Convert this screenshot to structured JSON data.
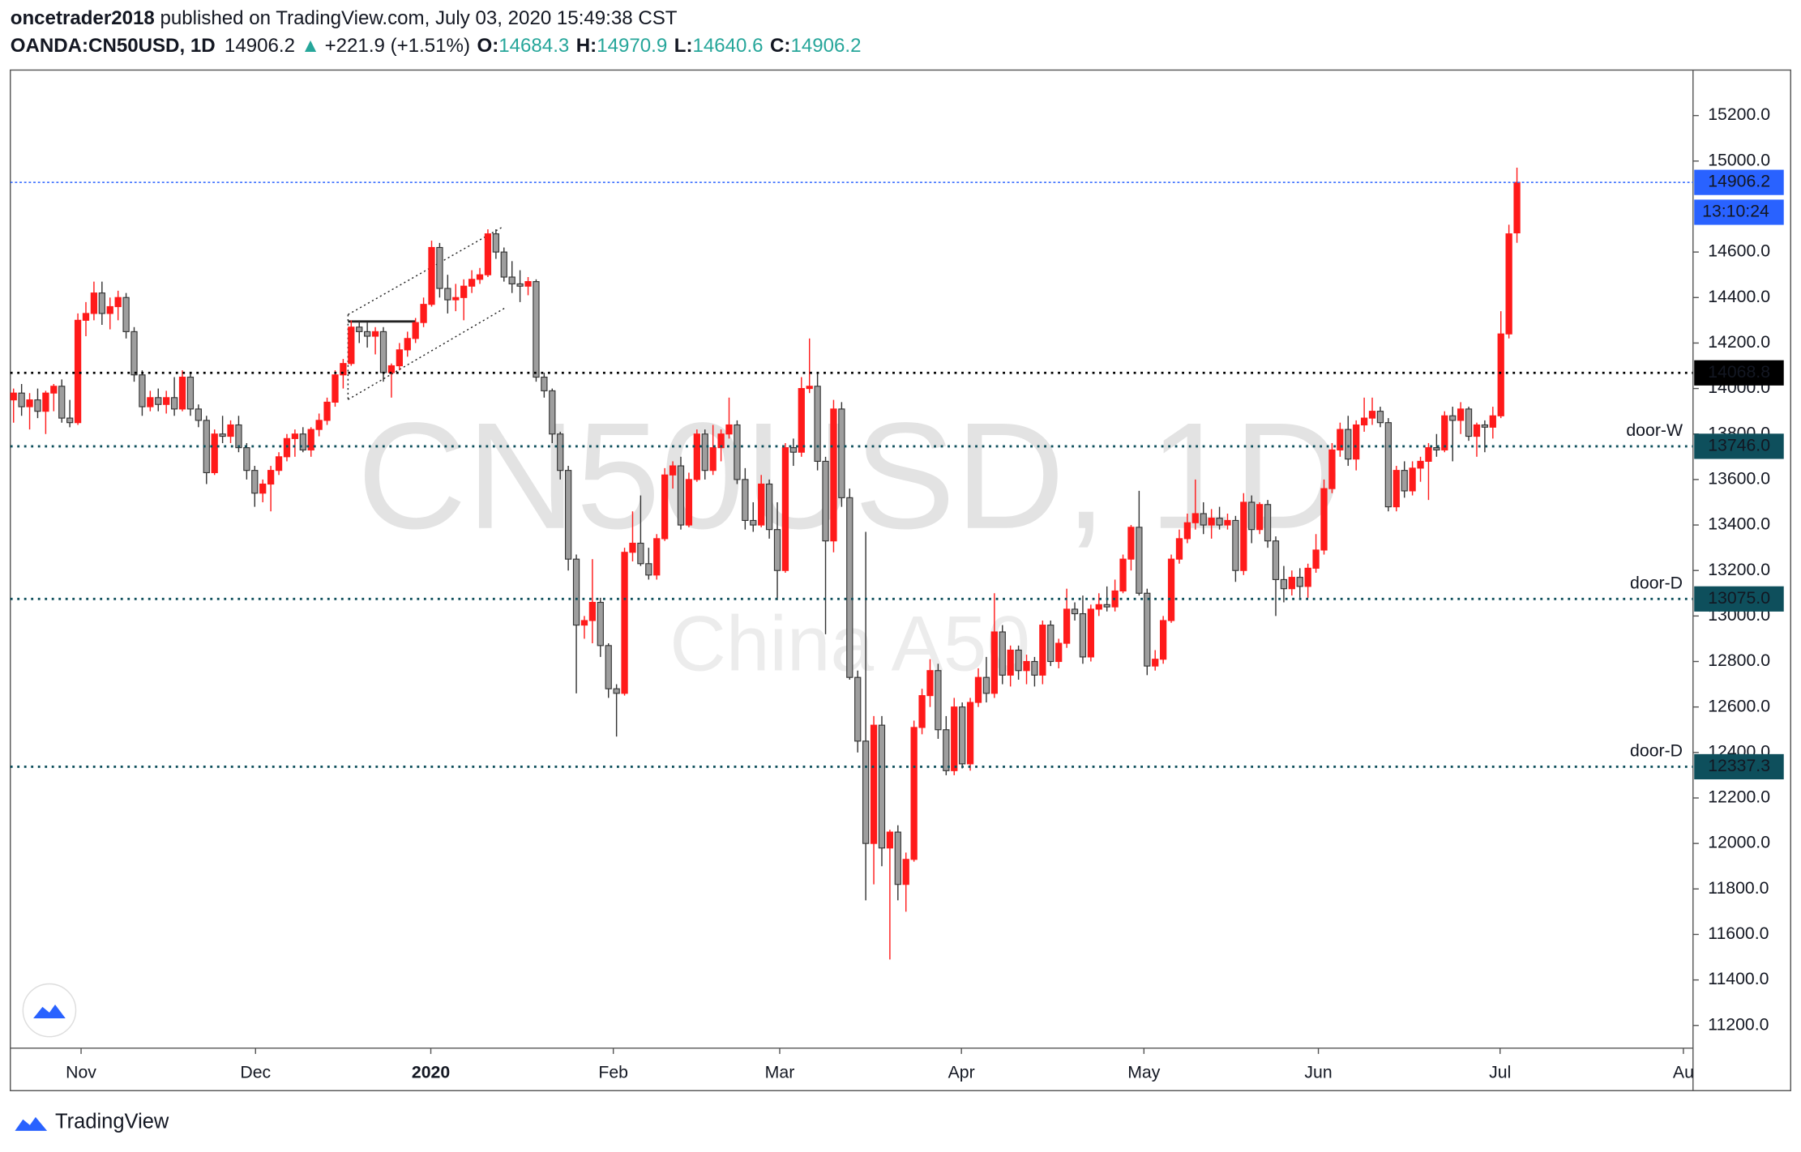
{
  "header": {
    "author": "oncetrader2018",
    "published": " published on TradingView.com, July 03, 2020 15:49:38 CST",
    "symbol": "OANDA:CN50USD, 1D",
    "price": "14906.2",
    "arrow": "▲",
    "change": "+221.9 (+1.51%)",
    "ohlc": [
      {
        "key": "O:",
        "value": "14684.3"
      },
      {
        "key": "H:",
        "value": "14970.9"
      },
      {
        "key": "L:",
        "value": "14640.6"
      },
      {
        "key": "C:",
        "value": "14906.2"
      }
    ]
  },
  "chart_data": {
    "type": "candlestick",
    "watermark": "CN50USD, 1D",
    "watermark_sub": "China A50",
    "up_color": "#ff1a1a",
    "down_color": "#9e9e9e",
    "ylim": [
      11100,
      15400
    ],
    "yticks": [
      {
        "value": 11200,
        "label": "11200.0"
      },
      {
        "value": 11400,
        "label": "11400.0"
      },
      {
        "value": 11600,
        "label": "11600.0"
      },
      {
        "value": 11800,
        "label": "11800.0"
      },
      {
        "value": 12000,
        "label": "12000.0"
      },
      {
        "value": 12200,
        "label": "12200.0"
      },
      {
        "value": 12400,
        "label": "12400.0"
      },
      {
        "value": 12600,
        "label": "12600.0"
      },
      {
        "value": 12800,
        "label": "12800.0"
      },
      {
        "value": 13000,
        "label": "13000.0"
      },
      {
        "value": 13200,
        "label": "13200.0"
      },
      {
        "value": 13400,
        "label": "13400.0"
      },
      {
        "value": 13600,
        "label": "13600.0"
      },
      {
        "value": 13800,
        "label": "13800.0"
      },
      {
        "value": 14000,
        "label": "14000.0"
      },
      {
        "value": 14200,
        "label": "14200.0"
      },
      {
        "value": 14400,
        "label": "14400.0"
      },
      {
        "value": 14600,
        "label": "14600.0"
      },
      {
        "value": 15000,
        "label": "15000.0"
      },
      {
        "value": 15200,
        "label": "15200.0"
      }
    ],
    "xlim": [
      -0.4,
      208.9
    ],
    "xticks": [
      {
        "value": 8.4,
        "label": "Nov"
      },
      {
        "value": 30.1,
        "label": "Dec"
      },
      {
        "value": 51.9,
        "label": "2020"
      },
      {
        "value": 74.6,
        "label": "Feb"
      },
      {
        "value": 95.3,
        "label": "Mar"
      },
      {
        "value": 117.9,
        "label": "Apr"
      },
      {
        "value": 140.6,
        "label": "May"
      },
      {
        "value": 162.3,
        "label": "Jun"
      },
      {
        "value": 184.9,
        "label": "Jul"
      },
      {
        "value": 207.7,
        "label": "Au"
      }
    ],
    "levels": [
      {
        "value": 14906.2,
        "label": "14906.2",
        "color": "#2962ff"
      },
      {
        "value": 14068.8,
        "label": "14068.8",
        "color": "#000000"
      },
      {
        "value": 13746.0,
        "label": "13746.0",
        "name": "door-W",
        "color": "#0e4f5c"
      },
      {
        "value": 13075.0,
        "label": "13075.0",
        "name": "door-D",
        "color": "#0e4f5c"
      },
      {
        "value": 12337.3,
        "label": "12337.3",
        "name": "door-D",
        "color": "#0e4f5c"
      }
    ],
    "countdown": "13:10:24",
    "candles": [
      [
        13950,
        14000,
        13850,
        13980
      ],
      [
        13980,
        14020,
        13880,
        13920
      ],
      [
        13920,
        13980,
        13820,
        13950
      ],
      [
        13950,
        14000,
        13870,
        13900
      ],
      [
        13900,
        13990,
        13800,
        13980
      ],
      [
        13980,
        14020,
        13900,
        14010
      ],
      [
        14010,
        14040,
        13850,
        13870
      ],
      [
        13870,
        13950,
        13830,
        13850
      ],
      [
        13850,
        14330,
        13840,
        14300
      ],
      [
        14300,
        14380,
        14230,
        14330
      ],
      [
        14330,
        14470,
        14300,
        14420
      ],
      [
        14420,
        14470,
        14280,
        14330
      ],
      [
        14330,
        14400,
        14260,
        14360
      ],
      [
        14360,
        14430,
        14300,
        14400
      ],
      [
        14400,
        14420,
        14220,
        14250
      ],
      [
        14250,
        14270,
        14030,
        14060
      ],
      [
        14060,
        14080,
        13880,
        13920
      ],
      [
        13920,
        13990,
        13900,
        13960
      ],
      [
        13960,
        14000,
        13900,
        13930
      ],
      [
        13930,
        13990,
        13890,
        13960
      ],
      [
        13960,
        14050,
        13880,
        13910
      ],
      [
        13910,
        14080,
        13900,
        14050
      ],
      [
        14050,
        14070,
        13880,
        13910
      ],
      [
        13910,
        13930,
        13830,
        13860
      ],
      [
        13860,
        13880,
        13580,
        13630
      ],
      [
        13630,
        13820,
        13620,
        13800
      ],
      [
        13800,
        13880,
        13760,
        13790
      ],
      [
        13790,
        13860,
        13760,
        13840
      ],
      [
        13840,
        13880,
        13720,
        13740
      ],
      [
        13740,
        13760,
        13600,
        13640
      ],
      [
        13640,
        13660,
        13480,
        13540
      ],
      [
        13540,
        13600,
        13500,
        13580
      ],
      [
        13580,
        13660,
        13460,
        13640
      ],
      [
        13640,
        13720,
        13620,
        13700
      ],
      [
        13700,
        13800,
        13680,
        13780
      ],
      [
        13780,
        13820,
        13700,
        13800
      ],
      [
        13800,
        13830,
        13720,
        13730
      ],
      [
        13730,
        13830,
        13700,
        13820
      ],
      [
        13820,
        13890,
        13790,
        13860
      ],
      [
        13860,
        13960,
        13840,
        13940
      ],
      [
        13940,
        14080,
        13920,
        14060
      ],
      [
        14060,
        14130,
        14000,
        14110
      ],
      [
        14110,
        14300,
        14100,
        14270
      ],
      [
        14270,
        14300,
        14200,
        14250
      ],
      [
        14250,
        14290,
        14180,
        14230
      ],
      [
        14230,
        14270,
        14150,
        14250
      ],
      [
        14250,
        14270,
        14030,
        14070
      ],
      [
        14070,
        14110,
        13960,
        14100
      ],
      [
        14100,
        14200,
        14080,
        14170
      ],
      [
        14170,
        14250,
        14140,
        14220
      ],
      [
        14220,
        14310,
        14200,
        14290
      ],
      [
        14290,
        14400,
        14270,
        14370
      ],
      [
        14370,
        14650,
        14360,
        14620
      ],
      [
        14620,
        14640,
        14400,
        14440
      ],
      [
        14440,
        14500,
        14330,
        14390
      ],
      [
        14390,
        14460,
        14340,
        14400
      ],
      [
        14400,
        14480,
        14300,
        14450
      ],
      [
        14450,
        14520,
        14420,
        14480
      ],
      [
        14480,
        14530,
        14460,
        14500
      ],
      [
        14500,
        14700,
        14490,
        14680
      ],
      [
        14680,
        14700,
        14570,
        14600
      ],
      [
        14600,
        14620,
        14470,
        14490
      ],
      [
        14490,
        14560,
        14420,
        14460
      ],
      [
        14460,
        14520,
        14380,
        14450
      ],
      [
        14450,
        14490,
        14410,
        14470
      ],
      [
        14470,
        14480,
        14030,
        14050
      ],
      [
        14050,
        14070,
        13960,
        13990
      ],
      [
        13990,
        14000,
        13760,
        13800
      ],
      [
        13800,
        13810,
        13600,
        13640
      ],
      [
        13640,
        13660,
        13200,
        13250
      ],
      [
        13250,
        13270,
        12660,
        12960
      ],
      [
        12960,
        13000,
        12900,
        12980
      ],
      [
        12980,
        13250,
        12880,
        13060
      ],
      [
        13060,
        13080,
        12820,
        12870
      ],
      [
        12870,
        12880,
        12640,
        12680
      ],
      [
        12680,
        12700,
        12470,
        12660
      ],
      [
        12660,
        13300,
        12650,
        13280
      ],
      [
        13280,
        13460,
        13240,
        13320
      ],
      [
        13320,
        13530,
        13220,
        13230
      ],
      [
        13230,
        13300,
        13160,
        13180
      ],
      [
        13180,
        13360,
        13160,
        13340
      ],
      [
        13340,
        13650,
        13330,
        13620
      ],
      [
        13620,
        13680,
        13560,
        13660
      ],
      [
        13660,
        13700,
        13380,
        13400
      ],
      [
        13400,
        13630,
        13390,
        13600
      ],
      [
        13600,
        13820,
        13590,
        13800
      ],
      [
        13800,
        13820,
        13600,
        13640
      ],
      [
        13640,
        13840,
        13620,
        13740
      ],
      [
        13740,
        13820,
        13680,
        13800
      ],
      [
        13800,
        13960,
        13780,
        13840
      ],
      [
        13840,
        13860,
        13580,
        13600
      ],
      [
        13600,
        13650,
        13380,
        13420
      ],
      [
        13420,
        13500,
        13370,
        13400
      ],
      [
        13400,
        13620,
        13390,
        13580
      ],
      [
        13580,
        13600,
        13340,
        13380
      ],
      [
        13380,
        13500,
        13070,
        13200
      ],
      [
        13200,
        13760,
        13190,
        13740
      ],
      [
        13740,
        13780,
        13660,
        13720
      ],
      [
        13720,
        14050,
        13700,
        14000
      ],
      [
        14000,
        14220,
        13980,
        14010
      ],
      [
        14010,
        14070,
        13640,
        13680
      ],
      [
        13680,
        13700,
        12920,
        13330
      ],
      [
        13330,
        13950,
        13280,
        13910
      ],
      [
        13910,
        13940,
        13480,
        13520
      ],
      [
        13520,
        13560,
        12720,
        12730
      ],
      [
        12730,
        12760,
        12400,
        12450
      ],
      [
        12450,
        13370,
        11750,
        12000
      ],
      [
        12000,
        12560,
        11820,
        12520
      ],
      [
        12520,
        12560,
        11900,
        11980
      ],
      [
        11980,
        12060,
        11490,
        12050
      ],
      [
        12050,
        12080,
        11750,
        11820
      ],
      [
        11820,
        11960,
        11700,
        11930
      ],
      [
        11930,
        12540,
        11920,
        12510
      ],
      [
        12510,
        12680,
        12480,
        12650
      ],
      [
        12650,
        12810,
        12600,
        12760
      ],
      [
        12760,
        12790,
        12460,
        12500
      ],
      [
        12500,
        12560,
        12300,
        12320
      ],
      [
        12320,
        12640,
        12300,
        12600
      ],
      [
        12600,
        12620,
        12330,
        12350
      ],
      [
        12350,
        12640,
        12320,
        12620
      ],
      [
        12620,
        12770,
        12600,
        12730
      ],
      [
        12730,
        12820,
        12620,
        12660
      ],
      [
        12660,
        13100,
        12640,
        12930
      ],
      [
        12930,
        12960,
        12700,
        12740
      ],
      [
        12740,
        12870,
        12690,
        12850
      ],
      [
        12850,
        12870,
        12720,
        12760
      ],
      [
        12760,
        12830,
        12700,
        12800
      ],
      [
        12800,
        12820,
        12690,
        12740
      ],
      [
        12740,
        12980,
        12700,
        12960
      ],
      [
        12960,
        12980,
        12780,
        12800
      ],
      [
        12800,
        12900,
        12770,
        12880
      ],
      [
        12880,
        13120,
        12860,
        13030
      ],
      [
        13030,
        13060,
        12980,
        13010
      ],
      [
        13010,
        13090,
        12790,
        12820
      ],
      [
        12820,
        13050,
        12800,
        13030
      ],
      [
        13030,
        13100,
        13000,
        13050
      ],
      [
        13050,
        13130,
        13020,
        13040
      ],
      [
        13040,
        13160,
        13020,
        13110
      ],
      [
        13110,
        13270,
        13100,
        13250
      ],
      [
        13250,
        13400,
        13200,
        13390
      ],
      [
        13390,
        13550,
        13090,
        13100
      ],
      [
        13100,
        13120,
        12740,
        12780
      ],
      [
        12780,
        12850,
        12760,
        12810
      ],
      [
        12810,
        13000,
        12790,
        12980
      ],
      [
        12980,
        13270,
        12970,
        13250
      ],
      [
        13250,
        13380,
        13230,
        13340
      ],
      [
        13340,
        13450,
        13320,
        13410
      ],
      [
        13410,
        13600,
        13380,
        13450
      ],
      [
        13450,
        13500,
        13360,
        13400
      ],
      [
        13400,
        13470,
        13340,
        13430
      ],
      [
        13430,
        13480,
        13380,
        13400
      ],
      [
        13400,
        13450,
        13380,
        13420
      ],
      [
        13420,
        13440,
        13150,
        13200
      ],
      [
        13200,
        13540,
        13180,
        13500
      ],
      [
        13500,
        13530,
        13320,
        13380
      ],
      [
        13380,
        13500,
        13360,
        13490
      ],
      [
        13490,
        13510,
        13300,
        13330
      ],
      [
        13330,
        13350,
        13000,
        13160
      ],
      [
        13160,
        13220,
        13060,
        13120
      ],
      [
        13120,
        13200,
        13090,
        13170
      ],
      [
        13170,
        13210,
        13080,
        13130
      ],
      [
        13130,
        13230,
        13080,
        13210
      ],
      [
        13210,
        13360,
        13190,
        13290
      ],
      [
        13290,
        13600,
        13270,
        13560
      ],
      [
        13560,
        13760,
        13540,
        13730
      ],
      [
        13730,
        13850,
        13700,
        13820
      ],
      [
        13820,
        13880,
        13660,
        13690
      ],
      [
        13690,
        13860,
        13640,
        13840
      ],
      [
        13840,
        13960,
        13810,
        13870
      ],
      [
        13870,
        13960,
        13840,
        13900
      ],
      [
        13900,
        13920,
        13830,
        13850
      ],
      [
        13850,
        13870,
        13460,
        13480
      ],
      [
        13480,
        13660,
        13460,
        13640
      ],
      [
        13640,
        13680,
        13520,
        13550
      ],
      [
        13550,
        13680,
        13530,
        13650
      ],
      [
        13650,
        13700,
        13590,
        13680
      ],
      [
        13680,
        13760,
        13510,
        13740
      ],
      [
        13740,
        13800,
        13700,
        13730
      ],
      [
        13730,
        13900,
        13720,
        13880
      ],
      [
        13880,
        13920,
        13680,
        13860
      ],
      [
        13860,
        13940,
        13800,
        13910
      ],
      [
        13910,
        13920,
        13770,
        13790
      ],
      [
        13790,
        13850,
        13700,
        13840
      ],
      [
        13840,
        13860,
        13720,
        13830
      ],
      [
        13830,
        13920,
        13780,
        13880
      ],
      [
        13880,
        14340,
        13870,
        14240
      ],
      [
        14240,
        14720,
        14220,
        14680
      ],
      [
        14684.3,
        14970.9,
        14640.6,
        14906.2
      ]
    ]
  },
  "footer": {
    "brand": "TradingView"
  }
}
